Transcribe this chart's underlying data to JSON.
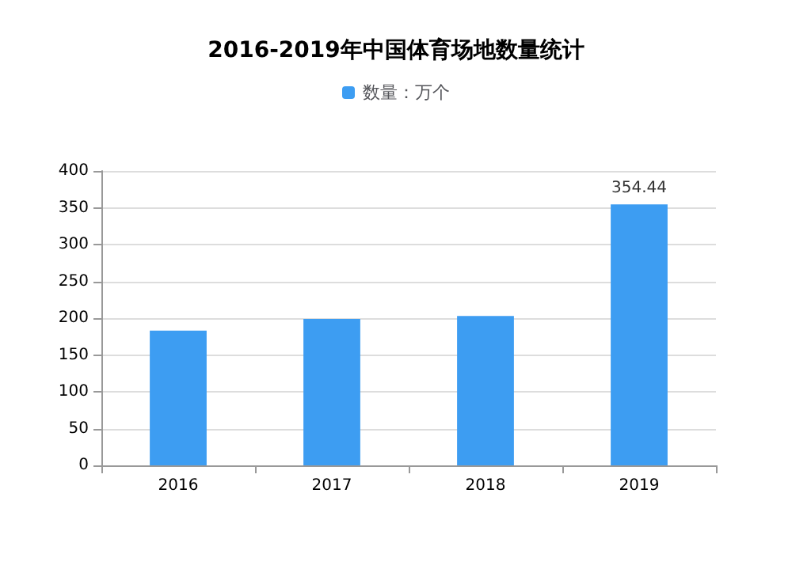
{
  "chart_data": {
    "type": "bar",
    "title": "2016-2019年中国体育场地数量统计",
    "categories": [
      "2016",
      "2017",
      "2018",
      "2019"
    ],
    "series": [
      {
        "name": "数量：万个",
        "color": "#3d9df2",
        "values": [
          183,
          199,
          203,
          354.44
        ],
        "value_labels": [
          null,
          null,
          null,
          "354.44"
        ]
      }
    ],
    "ylim": [
      0,
      400
    ],
    "yticks": [
      0,
      50,
      100,
      150,
      200,
      250,
      300,
      350,
      400
    ],
    "grid": "y",
    "legend": "top"
  }
}
